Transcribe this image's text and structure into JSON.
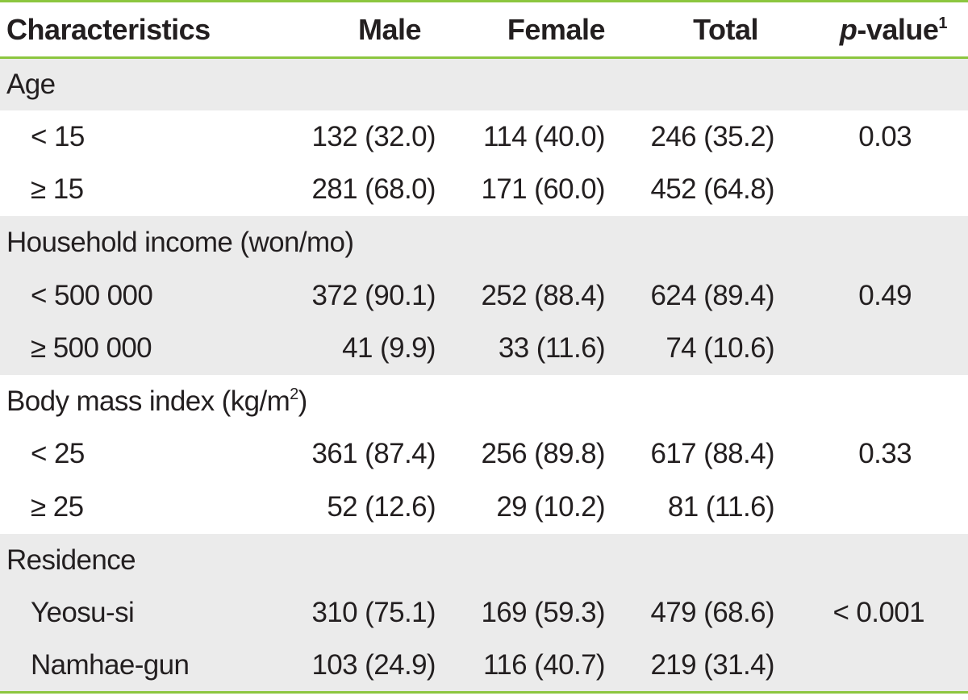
{
  "header": {
    "characteristics": "Characteristics",
    "male": "Male",
    "female": "Female",
    "total": "Total",
    "p_label": "p",
    "p_rest": "-value",
    "p_sup": "1"
  },
  "groups": {
    "age": {
      "label": "Age",
      "rows": [
        {
          "label": "< 15",
          "male": "132 (32.0)",
          "female": "114 (40.0)",
          "total": "246 (35.2)",
          "p": "0.03"
        },
        {
          "label": "≥ 15",
          "male": "281 (68.0)",
          "female": "171 (60.0)",
          "total": "452 (64.8)"
        }
      ]
    },
    "income": {
      "label": "Household income (won/mo)",
      "rows": [
        {
          "label": "< 500 000",
          "male": "372 (90.1)",
          "female": "252 (88.4)",
          "total": "624 (89.4)",
          "p": "0.49"
        },
        {
          "label": "≥ 500 000",
          "male": "41 (9.9)",
          "female": "33 (11.6)",
          "total": "74 (10.6)"
        }
      ]
    },
    "bmi": {
      "label": "Body mass index (kg/m",
      "label_sup": "2",
      "label_end": ")",
      "rows": [
        {
          "label": "< 25",
          "male": "361 (87.4)",
          "female": "256 (89.8)",
          "total": "617 (88.4)",
          "p": "0.33"
        },
        {
          "label": "≥ 25",
          "male": "52 (12.6)",
          "female": "29 (10.2)",
          "total": "81 (11.6)"
        }
      ]
    },
    "residence": {
      "label": "Residence",
      "rows": [
        {
          "label": "Yeosu-si",
          "male": "310 (75.1)",
          "female": "169 (59.3)",
          "total": "479 (68.6)",
          "p": "< 0.001"
        },
        {
          "label": "Namhae-gun",
          "male": "103 (24.9)",
          "female": "116 (40.7)",
          "total": "219 (31.4)"
        }
      ]
    }
  },
  "colors": {
    "rule": "#8cc63f",
    "shade": "#ebebeb",
    "text": "#231f20"
  }
}
